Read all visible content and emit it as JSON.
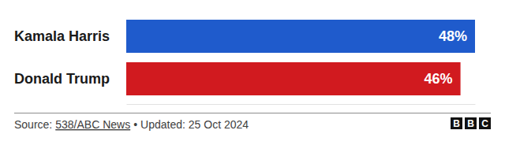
{
  "chart_data": {
    "type": "bar",
    "orientation": "horizontal",
    "categories": [
      "Kamala Harris",
      "Donald Trump"
    ],
    "values": [
      48,
      46
    ],
    "value_labels": [
      "48%",
      "46%"
    ],
    "colors": [
      "#1f5bcc",
      "#d11a1f"
    ],
    "xlim": [
      0,
      48
    ],
    "xticks": [],
    "data_labels": true,
    "tick_labels": "y",
    "grid": false,
    "annotations": [
      "Source:",
      "538/ABC News",
      "•",
      "Updated: 25 Oct 2024",
      "BBC"
    ]
  }
}
